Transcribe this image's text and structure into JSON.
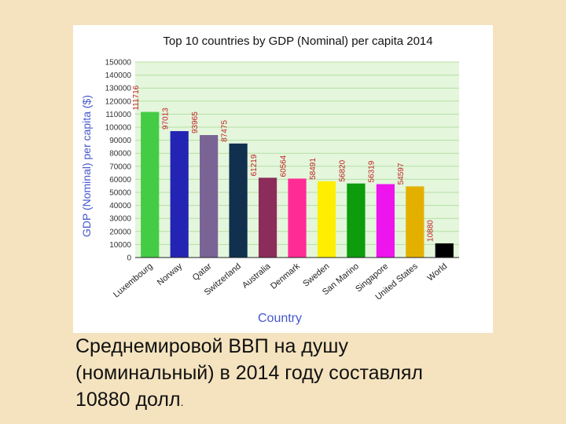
{
  "chart_data": {
    "type": "bar",
    "title": "Top 10 countries by GDP (Nominal) per capita 2014",
    "xlabel": "Country",
    "ylabel": "GDP (Nominal) per capita ($)",
    "ylim": [
      0,
      150000
    ],
    "ytick_step": 10000,
    "yticks": [
      "0",
      "10000",
      "20000",
      "30000",
      "40000",
      "50000",
      "60000",
      "70000",
      "80000",
      "90000",
      "100000",
      "110000",
      "120000",
      "130000",
      "140000",
      "150000"
    ],
    "grid": true,
    "categories": [
      "Luxembourg",
      "Norway",
      "Qatar",
      "Switzerland",
      "Australia",
      "Denmark",
      "Sweden",
      "San Marino",
      "Singapore",
      "United States",
      "World"
    ],
    "values": [
      111716,
      97013,
      93965,
      87475,
      61219,
      60564,
      58491,
      56820,
      56319,
      54597,
      10880
    ],
    "value_labels": [
      "111716",
      "97013",
      "93965",
      "87475",
      "61219",
      "60564",
      "58491",
      "56820",
      "56319",
      "54597",
      "10880"
    ],
    "colors": [
      "#44cc44",
      "#2424b4",
      "#7a6496",
      "#10304e",
      "#8c2c5a",
      "#ff2c96",
      "#ffee00",
      "#0c9c0c",
      "#ee14ee",
      "#e4b000",
      "#000000"
    ]
  },
  "colors": {
    "title": "#111111",
    "axis_label": "#4458cc",
    "value_label": "#c02020",
    "grid_bg": "#e4f6dc",
    "grid_line": "#b4e0a4",
    "page_bg": "#f4e3be"
  },
  "caption": {
    "line1": "Среднемировой ВВП на душу",
    "line2": "(номинальный) в 2014 году составлял",
    "line3_main": "10880 долл",
    "line3_dot": "."
  }
}
